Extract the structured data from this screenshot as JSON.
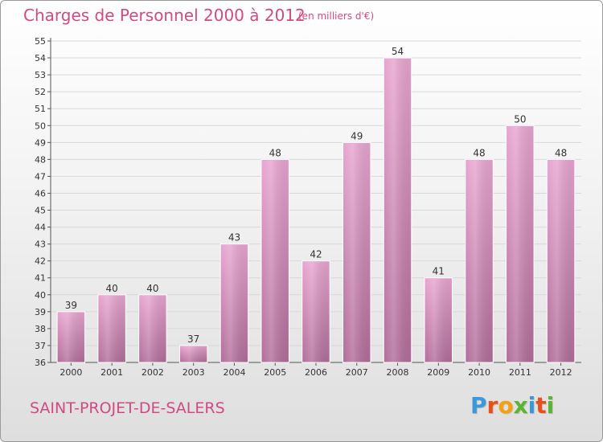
{
  "header": {
    "title": "Charges de Personnel 2000 à 2012",
    "subtitle": "(en milliers d'€)"
  },
  "footer": {
    "commune": "SAINT-PROJET-DE-SALERS",
    "logo_text": "Proxiti",
    "logo_colors": [
      "#3a9ad9",
      "#e94e1b",
      "#f3a10c",
      "#5cb531",
      "#3a9ad9",
      "#e94e1b",
      "#5cb531"
    ]
  },
  "colors": {
    "bar_top": "#e8a6d0",
    "bar_bottom": "#b26e9a",
    "accent": "#d04a83",
    "grid": "#d8d8d8",
    "axis": "#555555",
    "text": "#333333"
  },
  "chart_data": {
    "type": "bar",
    "title": "Charges de Personnel 2000 à 2012",
    "subtitle": "(en milliers d'€)",
    "categories": [
      "2000",
      "2001",
      "2002",
      "2003",
      "2004",
      "2005",
      "2006",
      "2007",
      "2008",
      "2009",
      "2010",
      "2011",
      "2012"
    ],
    "values": [
      39,
      40,
      40,
      37,
      43,
      48,
      42,
      49,
      54,
      41,
      48,
      50,
      48
    ],
    "ylim": [
      36,
      55
    ],
    "yticks": [
      36,
      37,
      38,
      39,
      40,
      41,
      42,
      43,
      44,
      45,
      46,
      47,
      48,
      49,
      50,
      51,
      52,
      53,
      54,
      55
    ],
    "grid": true,
    "data_labels": true
  }
}
